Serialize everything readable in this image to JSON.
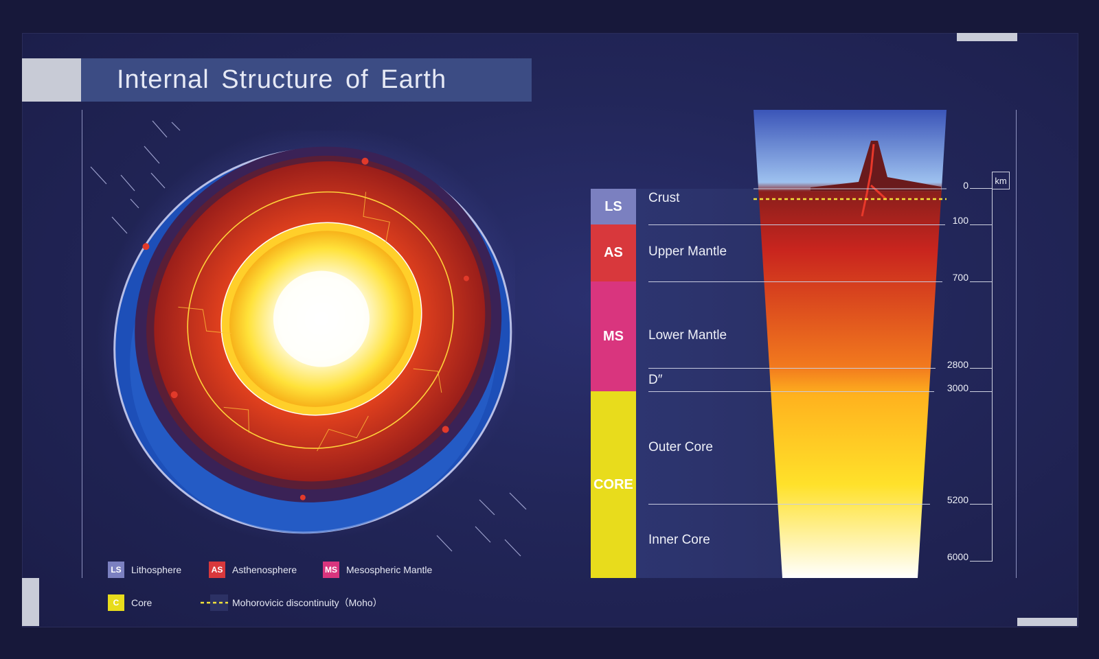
{
  "title": "Internal Structure of Earth",
  "bands": [
    {
      "code": "LS",
      "color": "#7b80c0"
    },
    {
      "code": "AS",
      "color": "#d8383c"
    },
    {
      "code": "MS",
      "color": "#d9357e"
    },
    {
      "code": "CORE",
      "color": "#e8dc1c"
    }
  ],
  "layers": [
    "Crust",
    "Upper Mantle",
    "Lower Mantle",
    "D″",
    "Outer Core",
    "Inner Core"
  ],
  "depth_unit": "km",
  "depth_ticks": [
    "0",
    "100",
    "700",
    "2800",
    "3000",
    "5200",
    "6000"
  ],
  "legend": [
    {
      "code": "LS",
      "label": "Lithosphere",
      "color": "#7b80c0"
    },
    {
      "code": "AS",
      "label": "Asthenosphere",
      "color": "#d8383c"
    },
    {
      "code": "MS",
      "label": "Mesospheric Mantle",
      "color": "#d9357e"
    },
    {
      "code": "C",
      "label": "Core",
      "color": "#e8dc1c"
    }
  ],
  "moho_label": "Mohorovicic discontinuity（Moho）",
  "colors": {
    "moho_line": "#f2e23a",
    "background": "#222659",
    "title_band": "#3c4c84"
  }
}
